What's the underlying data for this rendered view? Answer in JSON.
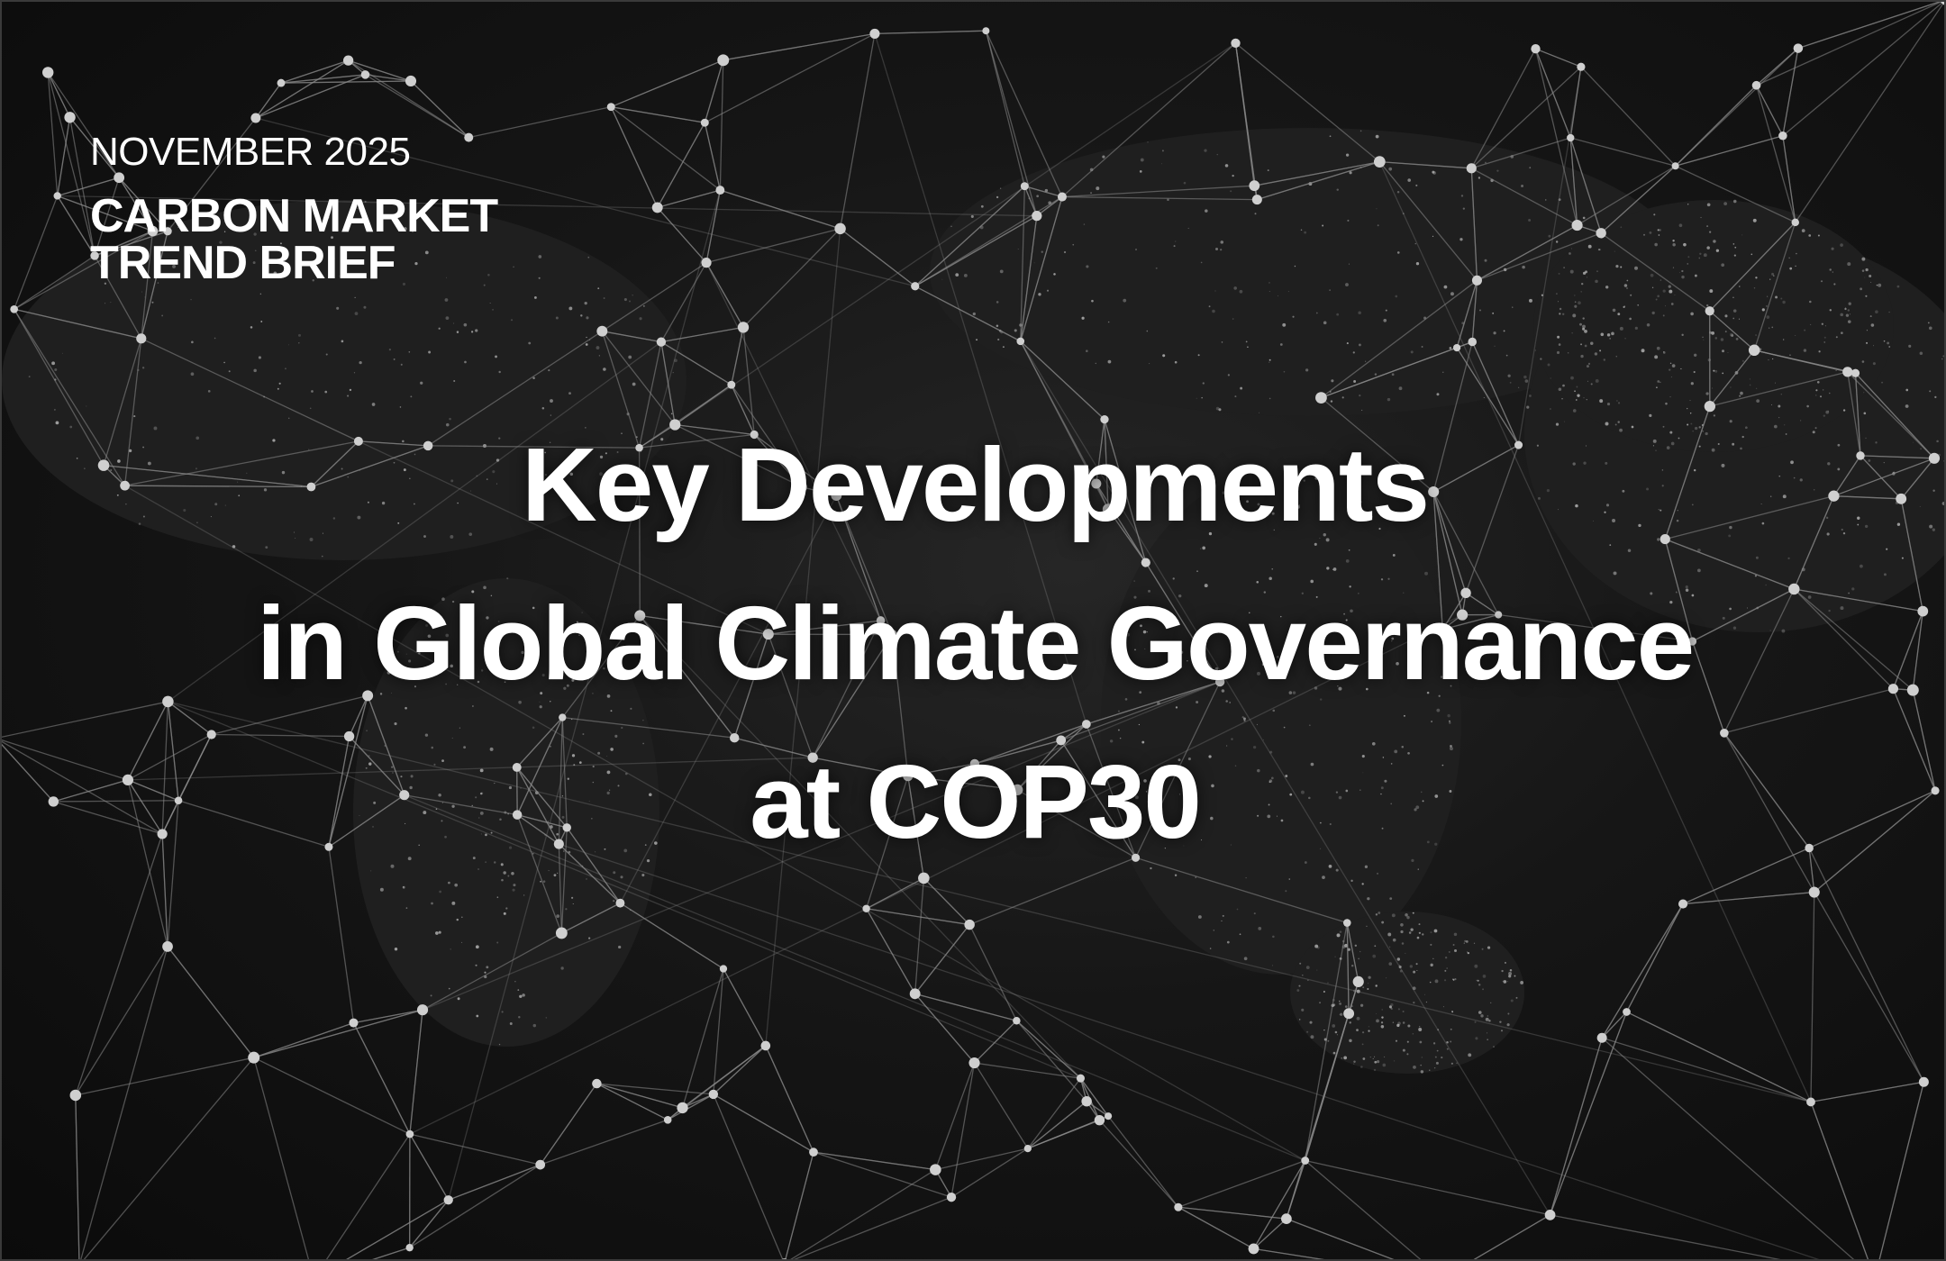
{
  "header": {
    "date": "NOVEMBER 2025",
    "series_line1": "CARBON MARKET",
    "series_line2": "TREND BRIEF"
  },
  "title": {
    "line1": "Key Developments",
    "line2": "in Global Climate Governance",
    "line3": "at COP30"
  },
  "background": {
    "description_icon": "world-map-network-icon",
    "line_color": "#9a9a9a",
    "node_color": "#cfcfcf"
  }
}
